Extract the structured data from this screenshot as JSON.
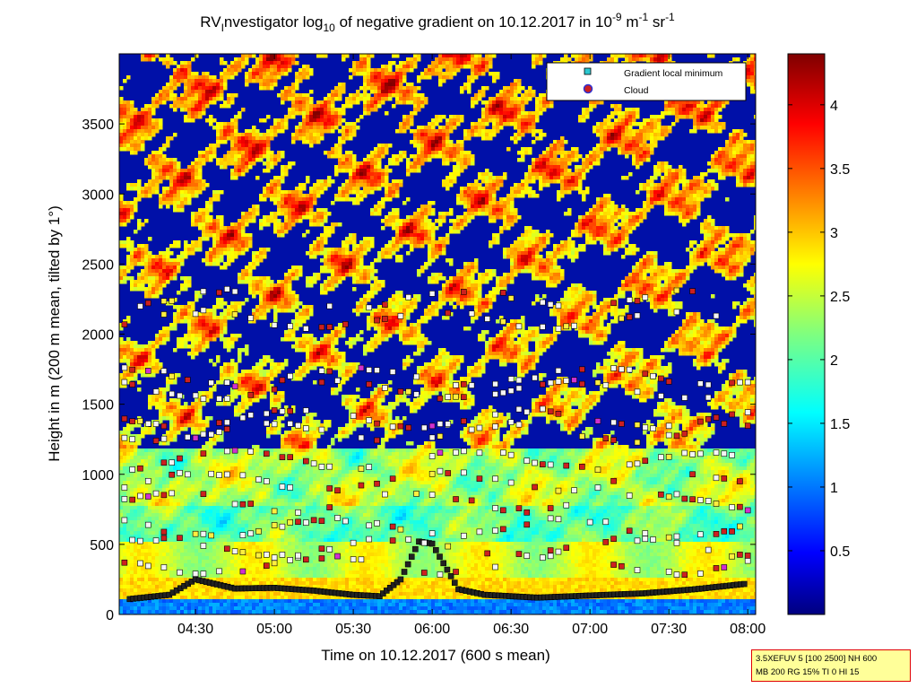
{
  "chart_data": {
    "type": "heatmap",
    "title": {
      "part1": "RV",
      "sub1": "I",
      "part2": "nvestigator log",
      "sub2": "10",
      "part3": " of negative gradient on 10.12.2017 in 10",
      "sup1": "-9",
      "part4": " m",
      "sup2": "-1",
      "part5": " sr",
      "sup3": "-1"
    },
    "xlabel": "Time on 10.12.2017 (600 s mean)",
    "ylabel": "Height in m (200 m mean, tilted by 1°)",
    "x_ticks": [
      "04:30",
      "05:00",
      "05:30",
      "06:00",
      "06:30",
      "07:00",
      "07:30",
      "08:00"
    ],
    "y_ticks": [
      "0",
      "500",
      "1000",
      "1500",
      "2000",
      "2500",
      "3000",
      "3500"
    ],
    "colorbar": {
      "ticks": [
        "0.5",
        "1",
        "1.5",
        "2",
        "2.5",
        "3",
        "3.5",
        "4"
      ],
      "range": [
        0,
        4.4
      ],
      "colormap": "jet"
    },
    "legend": {
      "placement": "top-right",
      "items": [
        {
          "label": "Gradient local minimum",
          "marker": "square",
          "color": "#2cc8d0"
        },
        {
          "label": "Cloud",
          "marker": "circle",
          "color": "#cc2020",
          "edge": "#3030d0"
        }
      ]
    },
    "series": [
      {
        "name": "Gradient local minimum",
        "trend": "lowest detected layer near 100-300 m, rising to about 550 m around 05:55-06:05",
        "x": [
          "04:05",
          "04:20",
          "04:30",
          "04:45",
          "05:00",
          "05:15",
          "05:30",
          "05:40",
          "05:48",
          "05:55",
          "06:00",
          "06:10",
          "06:20",
          "06:40",
          "07:00",
          "07:20",
          "07:40",
          "08:00"
        ],
        "y": [
          110,
          140,
          250,
          185,
          190,
          170,
          140,
          130,
          250,
          520,
          505,
          180,
          140,
          120,
          135,
          150,
          180,
          220
        ]
      }
    ]
  },
  "info_box": {
    "line1": "3.5XEFUV 5 [100 2500] NH 600",
    "line2": "MB 200 RG 15% TI 0 HI 15"
  }
}
